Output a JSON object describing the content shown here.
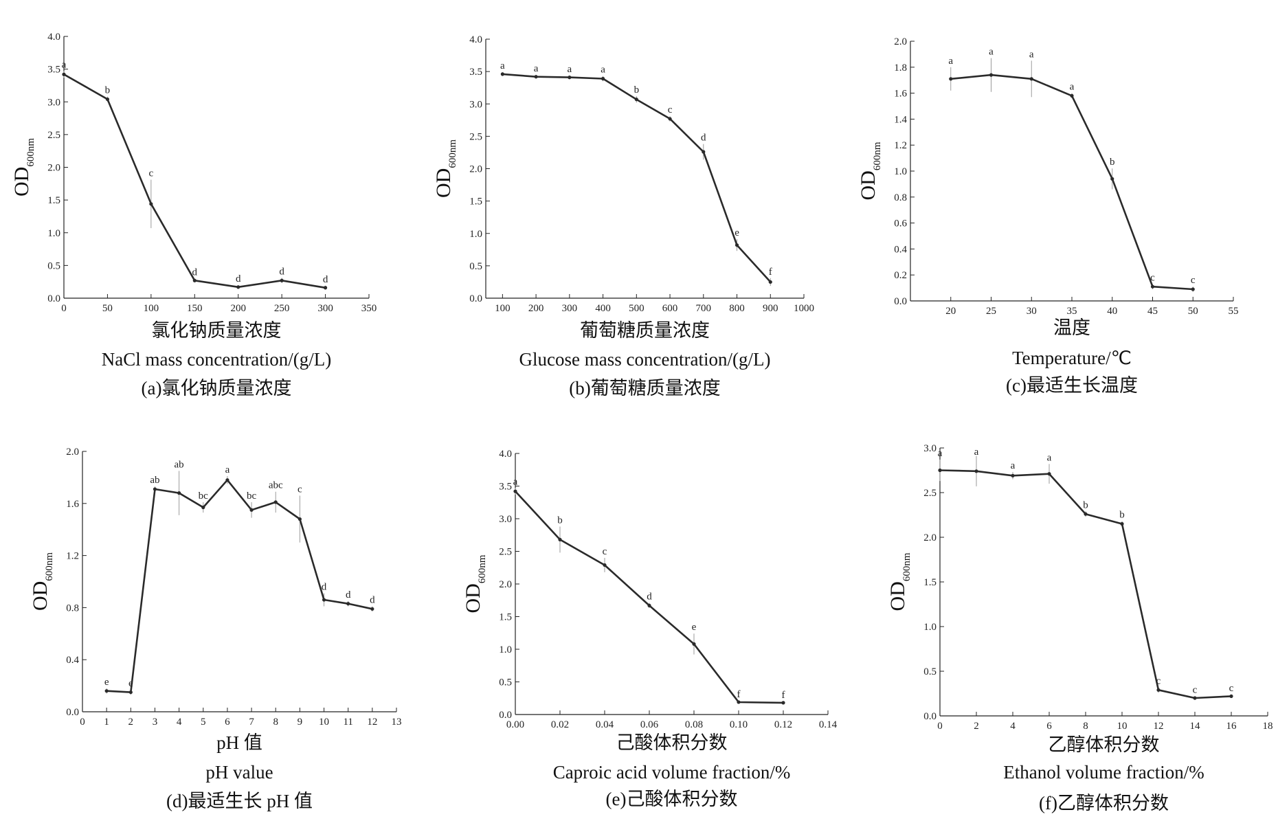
{
  "chart_data": [
    {
      "type": "line",
      "ylabel": "OD",
      "ylabel_sub": "600nm",
      "xlabel_cn": "氯化钠质量浓度",
      "xlabel": "NaCl  mass  concentration/(g/L)",
      "caption": "(a)氯化钠质量浓度",
      "xlim": [
        0,
        350
      ],
      "ylim": [
        0,
        4.0
      ],
      "xticks": [
        0,
        50,
        100,
        150,
        200,
        250,
        300,
        350
      ],
      "yticks": [
        0.0,
        0.5,
        1.0,
        1.5,
        2.0,
        2.5,
        3.0,
        3.5,
        4.0
      ],
      "x": [
        0,
        50,
        100,
        150,
        200,
        250,
        300
      ],
      "y": [
        3.42,
        3.04,
        1.44,
        0.27,
        0.17,
        0.27,
        0.16
      ],
      "err": [
        0.05,
        0.04,
        0.37,
        0.03,
        0.03,
        0.04,
        0.03
      ],
      "letters": [
        "a",
        "b",
        "c",
        "d",
        "d",
        "d",
        "d"
      ]
    },
    {
      "type": "line",
      "ylabel": "OD",
      "ylabel_sub": "600nm",
      "xlabel_cn": "葡萄糖质量浓度",
      "xlabel": "Glucose  mass  concentration/(g/L)",
      "caption": "(b)葡萄糖质量浓度",
      "xlim": [
        50,
        1000
      ],
      "ylim": [
        0,
        4.0
      ],
      "xticks": [
        100,
        200,
        300,
        400,
        500,
        600,
        700,
        800,
        900,
        1000
      ],
      "yticks": [
        0.0,
        0.5,
        1.0,
        1.5,
        2.0,
        2.5,
        3.0,
        3.5,
        4.0
      ],
      "x": [
        100,
        200,
        300,
        400,
        500,
        600,
        700,
        800,
        900
      ],
      "y": [
        3.46,
        3.42,
        3.41,
        3.39,
        3.07,
        2.77,
        2.26,
        0.82,
        0.25
      ],
      "err": [
        0.03,
        0.03,
        0.03,
        0.04,
        0.05,
        0.04,
        0.12,
        0.09,
        0.06
      ],
      "letters": [
        "a",
        "a",
        "a",
        "a",
        "b",
        "c",
        "d",
        "e",
        "f"
      ]
    },
    {
      "type": "line",
      "ylabel": "OD",
      "ylabel_sub": "600nm",
      "xlabel_cn": "温度",
      "xlabel": "Temperature/℃",
      "caption": "(c)最适生长温度",
      "xlim": [
        15,
        55
      ],
      "ylim": [
        0,
        2.0
      ],
      "xticks": [
        20,
        25,
        30,
        35,
        40,
        45,
        50,
        55
      ],
      "yticks": [
        0.0,
        0.2,
        0.4,
        0.6,
        0.8,
        1.0,
        1.2,
        1.4,
        1.6,
        1.8,
        2.0
      ],
      "x": [
        20,
        25,
        30,
        35,
        40,
        45,
        50
      ],
      "y": [
        1.71,
        1.74,
        1.71,
        1.58,
        0.94,
        0.11,
        0.09
      ],
      "err": [
        0.09,
        0.13,
        0.14,
        0.02,
        0.08,
        0.02,
        0.02
      ],
      "letters": [
        "a",
        "a",
        "a",
        "a",
        "b",
        "c",
        "c"
      ]
    },
    {
      "type": "line",
      "ylabel": "OD",
      "ylabel_sub": "600nm",
      "xlabel_cn": "pH 值",
      "xlabel": "pH  value",
      "caption": "(d)最适生长 pH 值",
      "xlim": [
        0,
        13
      ],
      "ylim": [
        0,
        2.0
      ],
      "xticks": [
        0,
        1,
        2,
        3,
        4,
        5,
        6,
        7,
        8,
        9,
        10,
        11,
        12,
        13
      ],
      "yticks": [
        0.0,
        0.4,
        0.8,
        1.2,
        1.6,
        2.0
      ],
      "x": [
        1,
        2,
        3,
        4,
        5,
        6,
        7,
        8,
        9,
        10,
        11,
        12
      ],
      "y": [
        0.16,
        0.15,
        1.71,
        1.68,
        1.57,
        1.78,
        1.55,
        1.61,
        1.48,
        0.86,
        0.83,
        0.79
      ],
      "err": [
        0.02,
        0.02,
        0.02,
        0.17,
        0.04,
        0.03,
        0.06,
        0.08,
        0.18,
        0.05,
        0.02,
        0.02
      ],
      "letters": [
        "e",
        "e",
        "ab",
        "ab",
        "bc",
        "a",
        "bc",
        "abc",
        "c",
        "d",
        "d",
        "d"
      ]
    },
    {
      "type": "line",
      "ylabel": "OD",
      "ylabel_sub": "600nm",
      "xlabel_cn": "己酸体积分数",
      "xlabel": "Caproic  acid  volume  fraction/%",
      "caption": "(e)己酸体积分数",
      "xlim": [
        0,
        0.14
      ],
      "ylim": [
        0,
        4.0
      ],
      "xticks": [
        "0.00",
        "0.02",
        "0.04",
        "0.06",
        "0.08",
        "0.10",
        "0.12",
        "0.14"
      ],
      "yticks": [
        0.0,
        0.5,
        1.0,
        1.5,
        2.0,
        2.5,
        3.0,
        3.5,
        4.0
      ],
      "x": [
        0.0,
        0.02,
        0.04,
        0.06,
        0.08,
        0.1,
        0.12
      ],
      "y": [
        3.42,
        2.68,
        2.29,
        1.67,
        1.08,
        0.19,
        0.18
      ],
      "err": [
        0.05,
        0.2,
        0.11,
        0.04,
        0.16,
        0.02,
        0.02
      ],
      "letters": [
        "a",
        "b",
        "c",
        "d",
        "e",
        "f",
        "f"
      ]
    },
    {
      "type": "line",
      "ylabel": "OD",
      "ylabel_sub": "600nm",
      "xlabel_cn": "乙醇体积分数",
      "xlabel": "Ethanol  volume  fraction/%",
      "caption": "(f)乙醇体积分数",
      "xlim": [
        0,
        18
      ],
      "ylim": [
        0,
        3.0
      ],
      "xticks": [
        0,
        2,
        4,
        6,
        8,
        10,
        12,
        14,
        16,
        18
      ],
      "yticks": [
        0.0,
        0.5,
        1.0,
        1.5,
        2.0,
        2.5,
        3.0
      ],
      "x": [
        0,
        2,
        4,
        6,
        8,
        10,
        12,
        14,
        16
      ],
      "y": [
        2.75,
        2.74,
        2.69,
        2.71,
        2.26,
        2.15,
        0.29,
        0.2,
        0.22
      ],
      "err": [
        0.12,
        0.17,
        0.04,
        0.11,
        0.03,
        0.03,
        0.03,
        0.02,
        0.02
      ],
      "letters": [
        "a",
        "a",
        "a",
        "a",
        "b",
        "b",
        "c",
        "c",
        "c"
      ]
    }
  ]
}
